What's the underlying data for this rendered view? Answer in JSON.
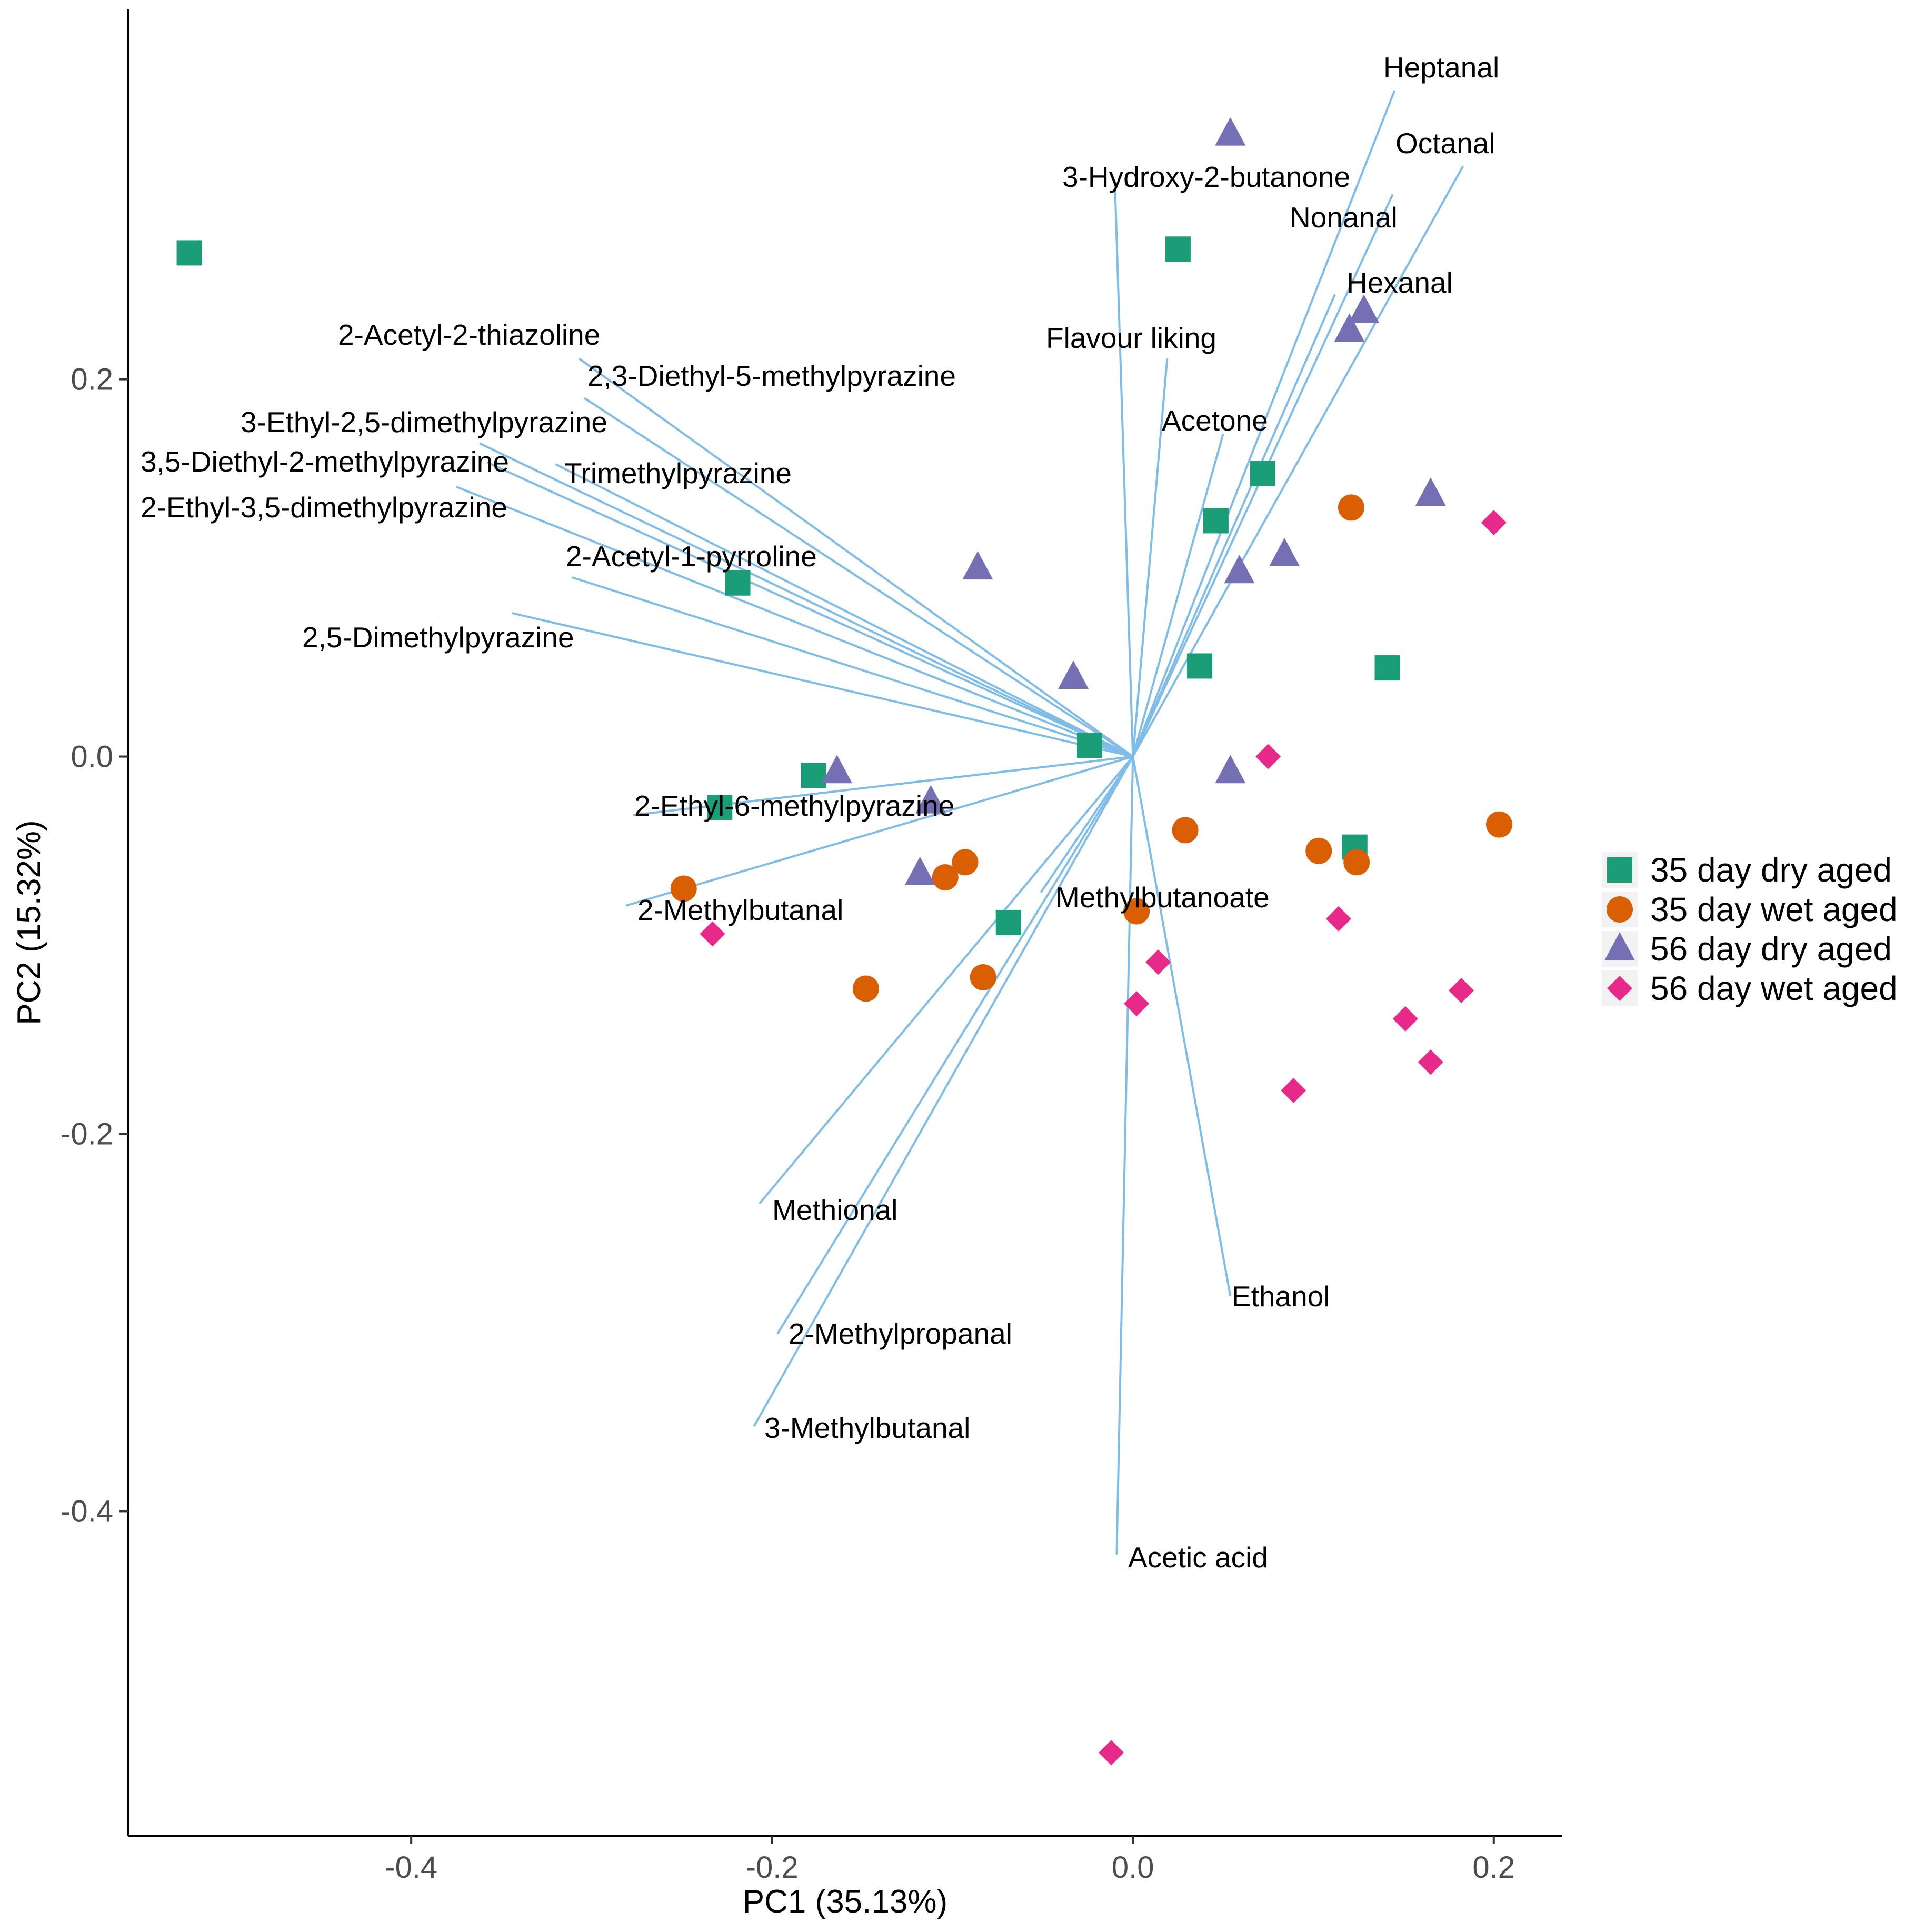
{
  "chart_data": {
    "type": "scatter",
    "subtype": "pca-biplot",
    "title": "",
    "xlabel": "PC1 (35.13%)",
    "ylabel": "PC2 (15.32%)",
    "xlim": [
      -0.557,
      0.238
    ],
    "ylim": [
      -0.572,
      0.396
    ],
    "xticks": [
      {
        "value": -0.4,
        "label": "-0.4"
      },
      {
        "value": -0.2,
        "label": "-0.2"
      },
      {
        "value": 0.0,
        "label": "0.0"
      },
      {
        "value": 0.2,
        "label": "0.2"
      }
    ],
    "yticks": [
      {
        "value": 0.2,
        "label": "0.2"
      },
      {
        "value": 0.0,
        "label": "0.0"
      },
      {
        "value": -0.2,
        "label": "-0.2"
      },
      {
        "value": -0.4,
        "label": "-0.4"
      }
    ],
    "grid": false,
    "legend_position": "right",
    "series": [
      {
        "name": "35 day dry aged",
        "color": "#1b9e77",
        "marker": "square",
        "points": [
          [
            -0.523,
            0.267
          ],
          [
            0.025,
            0.269
          ],
          [
            0.072,
            0.15
          ],
          [
            0.046,
            0.125
          ],
          [
            -0.219,
            0.092
          ],
          [
            0.037,
            0.048
          ],
          [
            0.141,
            0.047
          ],
          [
            -0.024,
            0.006
          ],
          [
            -0.177,
            -0.01
          ],
          [
            -0.229,
            -0.027
          ],
          [
            0.123,
            -0.048
          ],
          [
            -0.069,
            -0.088
          ]
        ]
      },
      {
        "name": "35 day wet aged",
        "color": "#d95f02",
        "marker": "circle",
        "points": [
          [
            0.121,
            0.132
          ],
          [
            0.203,
            -0.036
          ],
          [
            0.029,
            -0.039
          ],
          [
            0.103,
            -0.05
          ],
          [
            0.124,
            -0.056
          ],
          [
            -0.093,
            -0.056
          ],
          [
            -0.104,
            -0.064
          ],
          [
            -0.249,
            -0.07
          ],
          [
            0.002,
            -0.082
          ],
          [
            -0.083,
            -0.117
          ],
          [
            -0.148,
            -0.123
          ]
        ]
      },
      {
        "name": "56 day dry aged",
        "color": "#7570b3",
        "marker": "triangle",
        "points": [
          [
            0.054,
            0.33
          ],
          [
            0.128,
            0.236
          ],
          [
            0.12,
            0.226
          ],
          [
            0.165,
            0.139
          ],
          [
            0.084,
            0.107
          ],
          [
            0.059,
            0.098
          ],
          [
            -0.086,
            0.1
          ],
          [
            -0.033,
            0.042
          ],
          [
            -0.164,
            -0.008
          ],
          [
            0.054,
            -0.008
          ],
          [
            -0.112,
            -0.024
          ],
          [
            -0.118,
            -0.062
          ]
        ]
      },
      {
        "name": "56 day wet aged",
        "color": "#e7298a",
        "marker": "diamond",
        "points": [
          [
            0.2,
            0.124
          ],
          [
            0.075,
            0.0
          ],
          [
            0.114,
            -0.086
          ],
          [
            -0.233,
            -0.094
          ],
          [
            0.014,
            -0.109
          ],
          [
            0.002,
            -0.131
          ],
          [
            0.182,
            -0.124
          ],
          [
            0.151,
            -0.139
          ],
          [
            0.165,
            -0.162
          ],
          [
            0.089,
            -0.177
          ],
          [
            -0.012,
            -0.528
          ]
        ]
      }
    ],
    "loadings": [
      {
        "name": "Heptanal",
        "x": 0.145,
        "y": 0.353
      },
      {
        "name": "Octanal",
        "x": 0.183,
        "y": 0.313
      },
      {
        "name": "3-Hydroxy-2-butanone",
        "x": -0.01,
        "y": 0.305
      },
      {
        "name": "Nonanal",
        "x": 0.144,
        "y": 0.298
      },
      {
        "name": "Hexanal",
        "x": 0.112,
        "y": 0.245
      },
      {
        "name": "Flavour liking",
        "x": 0.019,
        "y": 0.211
      },
      {
        "name": "Acetone",
        "x": 0.05,
        "y": 0.171
      },
      {
        "name": "2-Acetyl-2-thiazoline",
        "x": -0.307,
        "y": 0.211
      },
      {
        "name": "2,3-Diethyl-5-methylpyrazine",
        "x": -0.304,
        "y": 0.19
      },
      {
        "name": "3-Ethyl-2,5-dimethylpyrazine",
        "x": -0.362,
        "y": 0.166
      },
      {
        "name": "3,5-Diethyl-2-methylpyrazine",
        "x": -0.358,
        "y": 0.156
      },
      {
        "name": "Trimethylpyrazine",
        "x": -0.32,
        "y": 0.155
      },
      {
        "name": "2-Ethyl-3,5-dimethylpyrazine",
        "x": -0.375,
        "y": 0.143
      },
      {
        "name": "2-Acetyl-1-pyrroline",
        "x": -0.311,
        "y": 0.095
      },
      {
        "name": "2,5-Dimethylpyrazine",
        "x": -0.344,
        "y": 0.076
      },
      {
        "name": "2-Ethyl-6-methylpyrazine",
        "x": -0.277,
        "y": -0.031
      },
      {
        "name": "2-Methylbutanal",
        "x": -0.281,
        "y": -0.079
      },
      {
        "name": "Methylbutanoate",
        "x": -0.051,
        "y": -0.072
      },
      {
        "name": "Methional",
        "x": -0.207,
        "y": -0.237
      },
      {
        "name": "Ethanol",
        "x": 0.054,
        "y": -0.286
      },
      {
        "name": "2-Methylpropanal",
        "x": -0.197,
        "y": -0.306
      },
      {
        "name": "3-Methylbutanal",
        "x": -0.21,
        "y": -0.355
      },
      {
        "name": "Acetic acid",
        "x": -0.009,
        "y": -0.423
      }
    ]
  }
}
